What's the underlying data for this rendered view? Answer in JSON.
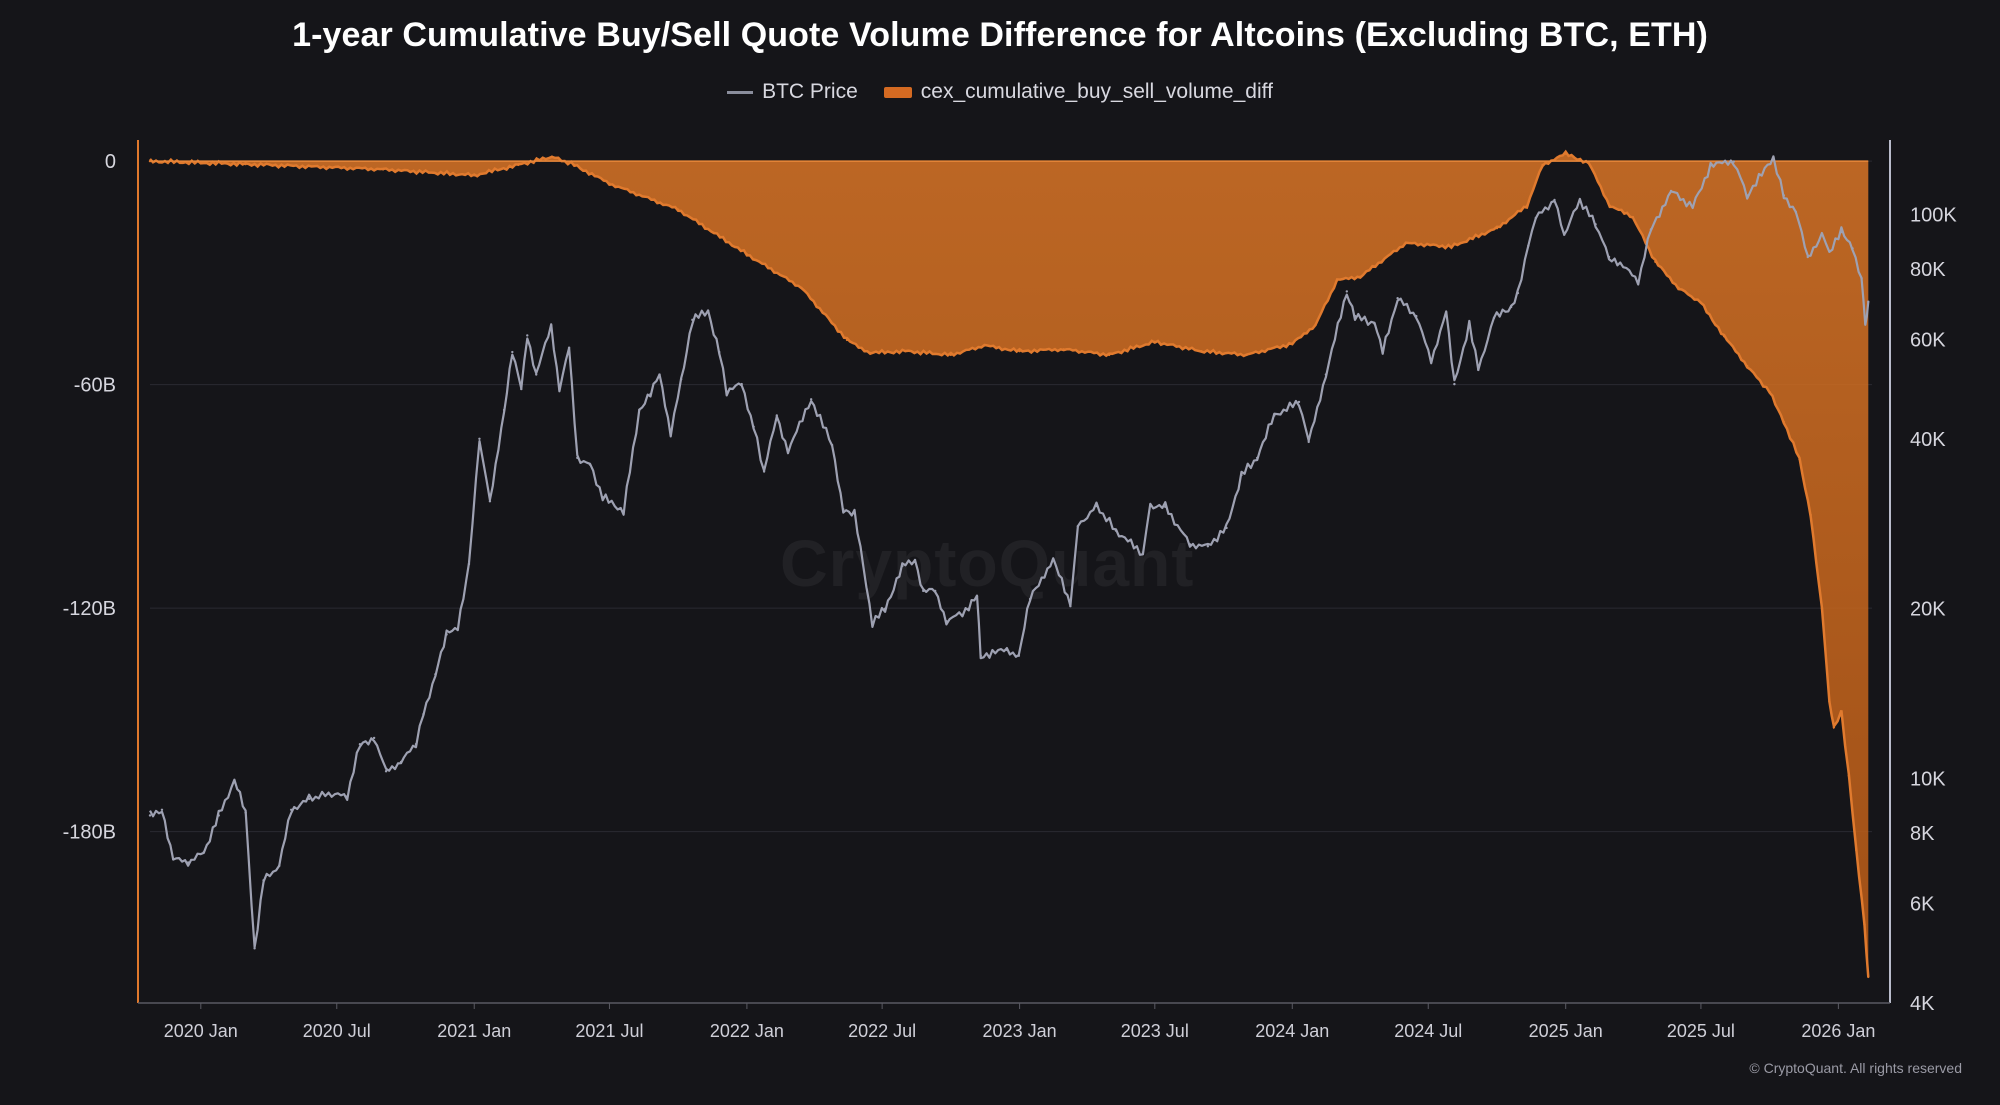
{
  "chart_data": {
    "type": "area",
    "title": "1-year Cumulative Buy/Sell Quote Volume Difference for Altcoins (Excluding BTC, ETH)",
    "copyright": "© CryptoQuant. All rights reserved",
    "watermark": "CryptoQuant",
    "legend_position": "top-center",
    "grid": true,
    "x_range": [
      "2019-10-25",
      "2026-02-15"
    ],
    "x_ticks": [
      "2020 Jan",
      "2020 Jul",
      "2021 Jan",
      "2021 Jul",
      "2022 Jan",
      "2022 Jul",
      "2023 Jan",
      "2023 Jul",
      "2024 Jan",
      "2024 Jul",
      "2025 Jan",
      "2025 Jul",
      "2026 Jan"
    ],
    "x_tick_dates": [
      "2020-01-01",
      "2020-07-01",
      "2021-01-01",
      "2021-07-01",
      "2022-01-01",
      "2022-07-01",
      "2023-01-01",
      "2023-07-01",
      "2024-01-01",
      "2024-07-01",
      "2025-01-01",
      "2025-07-01",
      "2026-01-01"
    ],
    "y_left": {
      "ticks": [
        "0",
        "-60B",
        "-120B",
        "-180B"
      ],
      "tick_values": [
        0,
        -60,
        -120,
        -180
      ],
      "range": [
        -226,
        3
      ],
      "unit": "B"
    },
    "y_right": {
      "ticks": [
        "100K",
        "80K",
        "60K",
        "40K",
        "20K",
        "10K",
        "8K",
        "6K",
        "4K"
      ],
      "tick_values": [
        100000,
        80000,
        60000,
        40000,
        20000,
        10000,
        8000,
        6000,
        4000
      ],
      "range": [
        4000,
        130000
      ],
      "scale": "log"
    },
    "series": [
      {
        "name": "BTC Price",
        "axis": "right",
        "color": "#9ea1b2",
        "points": [
          [
            "2019-10-25",
            8600
          ],
          [
            "2019-11-10",
            8800
          ],
          [
            "2019-11-25",
            7200
          ],
          [
            "2019-12-15",
            7100
          ],
          [
            "2020-01-05",
            7400
          ],
          [
            "2020-01-25",
            8600
          ],
          [
            "2020-02-15",
            9900
          ],
          [
            "2020-03-01",
            8700
          ],
          [
            "2020-03-13",
            5000
          ],
          [
            "2020-03-25",
            6600
          ],
          [
            "2020-04-15",
            7000
          ],
          [
            "2020-05-01",
            8800
          ],
          [
            "2020-05-25",
            9200
          ],
          [
            "2020-06-20",
            9400
          ],
          [
            "2020-07-15",
            9300
          ],
          [
            "2020-08-01",
            11500
          ],
          [
            "2020-08-20",
            11800
          ],
          [
            "2020-09-05",
            10300
          ],
          [
            "2020-09-25",
            10700
          ],
          [
            "2020-10-15",
            11500
          ],
          [
            "2020-10-25",
            13000
          ],
          [
            "2020-11-10",
            15300
          ],
          [
            "2020-11-25",
            18000
          ],
          [
            "2020-12-10",
            18400
          ],
          [
            "2020-12-25",
            24000
          ],
          [
            "2021-01-08",
            40000
          ],
          [
            "2021-01-22",
            31000
          ],
          [
            "2021-02-10",
            45000
          ],
          [
            "2021-02-21",
            57000
          ],
          [
            "2021-03-05",
            49000
          ],
          [
            "2021-03-13",
            61000
          ],
          [
            "2021-03-25",
            52000
          ],
          [
            "2021-04-14",
            63500
          ],
          [
            "2021-04-25",
            49000
          ],
          [
            "2021-05-08",
            58000
          ],
          [
            "2021-05-19",
            37000
          ],
          [
            "2021-06-05",
            36000
          ],
          [
            "2021-06-22",
            31500
          ],
          [
            "2021-07-20",
            29800
          ],
          [
            "2021-08-10",
            45000
          ],
          [
            "2021-08-25",
            48000
          ],
          [
            "2021-09-06",
            52000
          ],
          [
            "2021-09-21",
            41000
          ],
          [
            "2021-10-05",
            51000
          ],
          [
            "2021-10-20",
            65000
          ],
          [
            "2021-11-10",
            67500
          ],
          [
            "2021-11-25",
            57000
          ],
          [
            "2021-12-05",
            48500
          ],
          [
            "2021-12-25",
            50000
          ],
          [
            "2022-01-10",
            42000
          ],
          [
            "2022-01-24",
            35000
          ],
          [
            "2022-02-10",
            44000
          ],
          [
            "2022-02-25",
            38000
          ],
          [
            "2022-03-28",
            47000
          ],
          [
            "2022-04-25",
            39000
          ],
          [
            "2022-05-10",
            30000
          ],
          [
            "2022-05-25",
            29500
          ],
          [
            "2022-06-18",
            18900
          ],
          [
            "2022-07-05",
            20000
          ],
          [
            "2022-07-28",
            23800
          ],
          [
            "2022-08-14",
            24400
          ],
          [
            "2022-08-25",
            21500
          ],
          [
            "2022-09-10",
            21500
          ],
          [
            "2022-09-25",
            19000
          ],
          [
            "2022-10-25",
            20000
          ],
          [
            "2022-11-05",
            21000
          ],
          [
            "2022-11-10",
            16500
          ],
          [
            "2022-12-15",
            16900
          ],
          [
            "2022-12-31",
            16500
          ],
          [
            "2023-01-15",
            20800
          ],
          [
            "2023-02-15",
            24500
          ],
          [
            "2023-03-10",
            20200
          ],
          [
            "2023-03-20",
            28000
          ],
          [
            "2023-04-14",
            30400
          ],
          [
            "2023-05-10",
            27500
          ],
          [
            "2023-06-15",
            25000
          ],
          [
            "2023-06-25",
            30500
          ],
          [
            "2023-07-15",
            30300
          ],
          [
            "2023-08-17",
            26000
          ],
          [
            "2023-09-10",
            25800
          ],
          [
            "2023-10-05",
            27800
          ],
          [
            "2023-10-25",
            34500
          ],
          [
            "2023-11-15",
            37000
          ],
          [
            "2023-12-08",
            44000
          ],
          [
            "2024-01-10",
            46500
          ],
          [
            "2024-01-23",
            39500
          ],
          [
            "2024-02-15",
            52000
          ],
          [
            "2024-03-14",
            73000
          ],
          [
            "2024-03-25",
            66000
          ],
          [
            "2024-04-20",
            64000
          ],
          [
            "2024-05-01",
            57000
          ],
          [
            "2024-05-21",
            71000
          ],
          [
            "2024-06-15",
            66000
          ],
          [
            "2024-07-05",
            55000
          ],
          [
            "2024-07-25",
            67000
          ],
          [
            "2024-08-05",
            50000
          ],
          [
            "2024-08-25",
            64000
          ],
          [
            "2024-09-06",
            53000
          ],
          [
            "2024-09-27",
            65500
          ],
          [
            "2024-10-20",
            68500
          ],
          [
            "2024-10-29",
            72500
          ],
          [
            "2024-11-12",
            88000
          ],
          [
            "2024-11-22",
            98500
          ],
          [
            "2024-12-17",
            106000
          ],
          [
            "2024-12-30",
            92000
          ],
          [
            "2025-01-20",
            106000
          ],
          [
            "2025-02-10",
            96000
          ],
          [
            "2025-02-28",
            84000
          ],
          [
            "2025-03-15",
            82000
          ],
          [
            "2025-04-08",
            76000
          ],
          [
            "2025-04-25",
            94000
          ],
          [
            "2025-05-22",
            110000
          ],
          [
            "2025-06-20",
            103000
          ],
          [
            "2025-07-14",
            122000
          ],
          [
            "2025-08-14",
            124000
          ],
          [
            "2025-09-01",
            108000
          ],
          [
            "2025-10-06",
            126000
          ],
          [
            "2025-10-20",
            108000
          ],
          [
            "2025-11-05",
            101000
          ],
          [
            "2025-11-21",
            84000
          ],
          [
            "2025-12-10",
            92000
          ],
          [
            "2025-12-20",
            86000
          ],
          [
            "2026-01-05",
            93000
          ],
          [
            "2026-01-20",
            87000
          ],
          [
            "2026-02-01",
            77000
          ],
          [
            "2026-02-06",
            64000
          ],
          [
            "2026-02-10",
            70000
          ]
        ]
      },
      {
        "name": "cex_cumulative_buy_sell_volume_diff",
        "axis": "left",
        "color": "#e07a2e",
        "unit": "B",
        "points": [
          [
            "2019-10-25",
            0
          ],
          [
            "2020-03-01",
            -0.8
          ],
          [
            "2020-09-01",
            -2.2
          ],
          [
            "2021-01-01",
            -3.8
          ],
          [
            "2021-03-01",
            -1.0
          ],
          [
            "2021-04-15",
            1.2
          ],
          [
            "2021-05-15",
            -1.0
          ],
          [
            "2021-07-01",
            -6.0
          ],
          [
            "2021-10-01",
            -13.0
          ],
          [
            "2022-01-01",
            -25.0
          ],
          [
            "2022-03-15",
            -34.0
          ],
          [
            "2022-05-15",
            -48.0
          ],
          [
            "2022-06-15",
            -51.5
          ],
          [
            "2022-08-01",
            -51.0
          ],
          [
            "2022-10-01",
            -52.0
          ],
          [
            "2022-11-15",
            -49.5
          ],
          [
            "2023-01-01",
            -51.0
          ],
          [
            "2023-03-01",
            -50.5
          ],
          [
            "2023-05-01",
            -52.0
          ],
          [
            "2023-07-01",
            -48.5
          ],
          [
            "2023-09-01",
            -51.0
          ],
          [
            "2023-11-01",
            -52.0
          ],
          [
            "2024-01-01",
            -49.0
          ],
          [
            "2024-02-01",
            -44.0
          ],
          [
            "2024-03-01",
            -32.0
          ],
          [
            "2024-04-01",
            -31.0
          ],
          [
            "2024-06-01",
            -22.0
          ],
          [
            "2024-08-01",
            -23.0
          ],
          [
            "2024-10-01",
            -18.0
          ],
          [
            "2024-11-10",
            -12.0
          ],
          [
            "2024-12-01",
            -1.0
          ],
          [
            "2025-01-01",
            2.0
          ],
          [
            "2025-02-01",
            -0.5
          ],
          [
            "2025-03-01",
            -12.0
          ],
          [
            "2025-04-01",
            -15.0
          ],
          [
            "2025-05-01",
            -27.0
          ],
          [
            "2025-06-01",
            -34.0
          ],
          [
            "2025-07-01",
            -38.0
          ],
          [
            "2025-08-01",
            -47.0
          ],
          [
            "2025-09-01",
            -55.0
          ],
          [
            "2025-10-01",
            -62.0
          ],
          [
            "2025-10-20",
            -70.0
          ],
          [
            "2025-11-10",
            -80.0
          ],
          [
            "2025-11-25",
            -95.0
          ],
          [
            "2025-12-10",
            -120.0
          ],
          [
            "2025-12-20",
            -145.0
          ],
          [
            "2025-12-26",
            -152.0
          ],
          [
            "2026-01-05",
            -148.0
          ],
          [
            "2026-01-15",
            -165.0
          ],
          [
            "2026-01-25",
            -185.0
          ],
          [
            "2026-02-05",
            -205.0
          ],
          [
            "2026-02-10",
            -219.0
          ]
        ]
      }
    ]
  }
}
